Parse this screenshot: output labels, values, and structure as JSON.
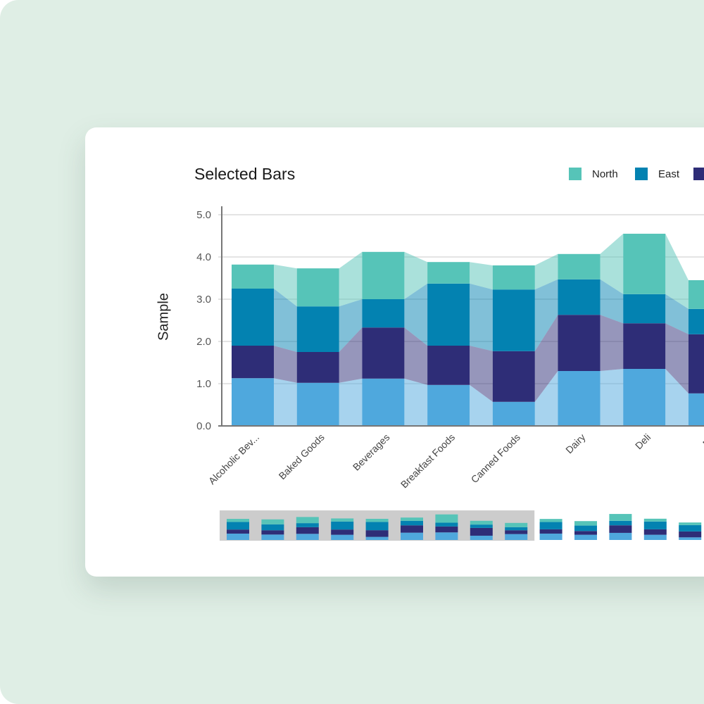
{
  "chart_data": [
    {
      "type": "bar",
      "stacked": true,
      "title": "Selected Bars",
      "ylabel": "Sample",
      "xlabel": "",
      "ylim": [
        0,
        5
      ],
      "yticks": [
        "0.0",
        "1.0",
        "2.0",
        "3.0",
        "4.0",
        "5.0"
      ],
      "grid": true,
      "legend_position": "top-right",
      "categories": [
        "Alcoholic Bev...",
        "Baked Goods",
        "Beverages",
        "Breakfast Foods",
        "Canned Foods",
        "Dairy",
        "Deli",
        "Me"
      ],
      "series": [
        {
          "name": "",
          "color": "#4fa8dd",
          "values": [
            1.13,
            1.02,
            1.12,
            0.97,
            0.57,
            1.3,
            1.35,
            0.77
          ]
        },
        {
          "name": "",
          "color": "#2e2d77",
          "values": [
            0.77,
            0.73,
            1.21,
            0.93,
            1.2,
            1.33,
            1.08,
            1.4
          ]
        },
        {
          "name": "East",
          "color": "#0382b1",
          "values": [
            1.35,
            1.08,
            0.67,
            1.47,
            1.46,
            0.84,
            0.69,
            0.6
          ]
        },
        {
          "name": "North",
          "color": "#56c4b8",
          "values": [
            0.57,
            0.9,
            1.12,
            0.51,
            0.57,
            0.6,
            1.43,
            0.68
          ]
        }
      ]
    },
    {
      "type": "bar",
      "stacked": true,
      "role": "overview-navigator",
      "selected_range": [
        1,
        9
      ],
      "series": [
        {
          "color": "#4fa8dd",
          "values": [
            1.15,
            0.98,
            1.11,
            0.94,
            0.56,
            1.32,
            1.37,
            0.77,
            1.07,
            1.15,
            0.94,
            1.28,
            0.94,
            0.47
          ]
        },
        {
          "color": "#2e2d77",
          "values": [
            0.73,
            0.77,
            1.2,
            0.94,
            1.2,
            1.32,
            1.07,
            1.41,
            0.68,
            0.77,
            0.68,
            1.37,
            0.98,
            1.07
          ]
        },
        {
          "color": "#0382b1",
          "values": [
            1.37,
            1.07,
            0.73,
            1.45,
            1.5,
            0.81,
            0.68,
            0.6,
            0.56,
            1.32,
            0.98,
            0.81,
            1.41,
            1.15
          ]
        },
        {
          "color": "#56c4b8",
          "values": [
            0.56,
            0.9,
            1.11,
            0.56,
            0.56,
            0.6,
            1.5,
            0.68,
            0.77,
            0.56,
            0.81,
            1.24,
            0.51,
            0.47
          ]
        }
      ]
    }
  ],
  "legend": [
    {
      "label": "North",
      "color": "#56c4b8"
    },
    {
      "label": "East",
      "color": "#0382b1"
    },
    {
      "label": "",
      "color": "#2e2d77"
    }
  ]
}
